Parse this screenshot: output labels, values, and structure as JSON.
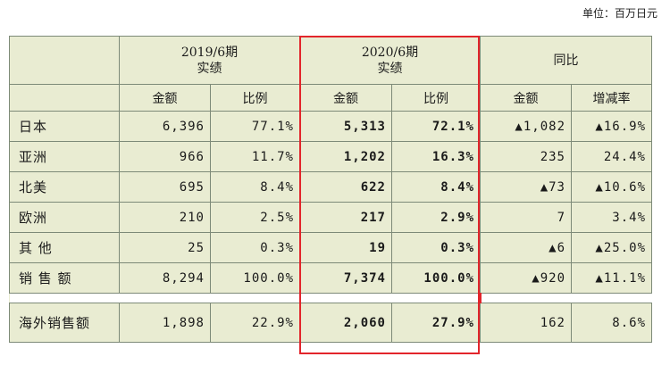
{
  "unit_label": "单位：百万日元",
  "colors": {
    "table_bg": "#e9ecd2",
    "grid": "#7d8a78",
    "highlight": "#e2252b"
  },
  "periods": {
    "p2019": [
      "2019/6期",
      "实绩"
    ],
    "p2020": [
      "2020/6期",
      "实绩"
    ],
    "yoy": "同比"
  },
  "subheaders": {
    "amount": "金额",
    "ratio": "比例",
    "change": "增减率"
  },
  "rows": [
    {
      "label": "日本",
      "a2019": "6,396",
      "r2019": "77.1%",
      "a2020": "5,313",
      "r2020": "72.1%",
      "yoy_amt": "▲1,082",
      "yoy_rate": "▲16.9%"
    },
    {
      "label": "亚洲",
      "a2019": "966",
      "r2019": "11.7%",
      "a2020": "1,202",
      "r2020": "16.3%",
      "yoy_amt": "235",
      "yoy_rate": "24.4%"
    },
    {
      "label": "北美",
      "a2019": "695",
      "r2019": "8.4%",
      "a2020": "622",
      "r2020": "8.4%",
      "yoy_amt": "▲73",
      "yoy_rate": "▲10.6%"
    },
    {
      "label": "欧洲",
      "a2019": "210",
      "r2019": "2.5%",
      "a2020": "217",
      "r2020": "2.9%",
      "yoy_amt": "7",
      "yoy_rate": "3.4%"
    },
    {
      "label": "其 他",
      "a2019": "25",
      "r2019": "0.3%",
      "a2020": "19",
      "r2020": "0.3%",
      "yoy_amt": "▲6",
      "yoy_rate": "▲25.0%"
    },
    {
      "label": "销 售 额",
      "a2019": "8,294",
      "r2019": "100.0%",
      "a2020": "7,374",
      "r2020": "100.0%",
      "yoy_amt": "▲920",
      "yoy_rate": "▲11.1%"
    }
  ],
  "overseas": {
    "label": "海外销售额",
    "a2019": "1,898",
    "r2019": "22.9%",
    "a2020": "2,060",
    "r2020": "27.9%",
    "yoy_amt": "162",
    "yoy_rate": "8.6%"
  }
}
